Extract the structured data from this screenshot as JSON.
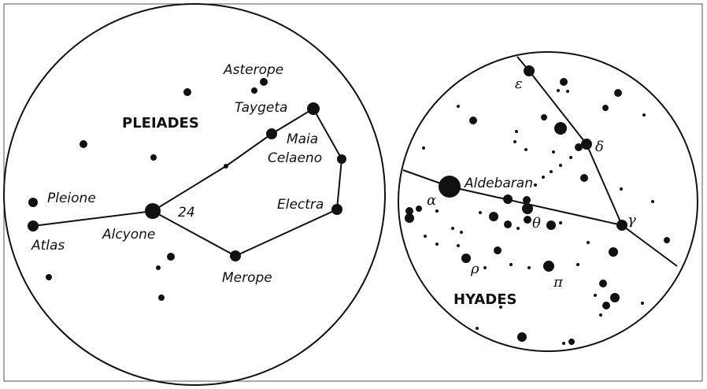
{
  "pleiades": {
    "title": "PLEIADES",
    "labels": [
      "Asterope",
      "Taygeta",
      "Maia",
      "Celaeno",
      "Electra",
      "Pleione",
      "Alcyone",
      "24",
      "Atlas",
      "Merope"
    ]
  },
  "hyades": {
    "title": "HYADES",
    "labels": [
      "ε",
      "δ",
      "Aldebaran",
      "α",
      "θ",
      "γ",
      "ρ",
      "π"
    ]
  }
}
